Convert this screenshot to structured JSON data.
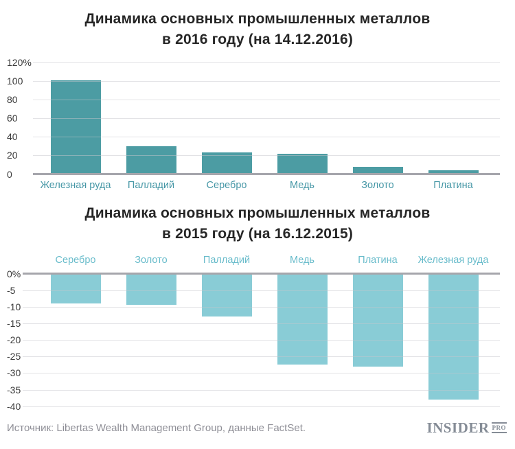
{
  "chart_data": [
    {
      "type": "bar",
      "title": "Динамика основных промышленных металлов",
      "subtitle": "в 2016 году (на 14.12.2016)",
      "unit": "%",
      "categories": [
        "Железная руда",
        "Палладий",
        "Серебро",
        "Медь",
        "Золото",
        "Платина"
      ],
      "values": [
        101,
        30,
        23,
        22,
        8,
        4
      ],
      "ylim": [
        0,
        120
      ],
      "grid": true,
      "legend": "none",
      "yticks": [
        {
          "label": "120%",
          "value": 120
        },
        {
          "label": "100",
          "value": 100
        },
        {
          "label": "80",
          "value": 80
        },
        {
          "label": "60",
          "value": 60
        },
        {
          "label": "40",
          "value": 40
        },
        {
          "label": "20",
          "value": 20
        },
        {
          "label": "0",
          "value": 0
        }
      ],
      "bar_color": "#4c9ca3",
      "label_color": "#4697a6"
    },
    {
      "type": "bar",
      "title": "Динамика основных промышленных металлов",
      "subtitle": "в 2015 году (на 16.12.2015)",
      "unit": "%",
      "categories": [
        "Серебро",
        "Золото",
        "Палладий",
        "Медь",
        "Платина",
        "Железная руда"
      ],
      "values": [
        -9,
        -9.5,
        -13,
        -27.5,
        -28,
        -38
      ],
      "ylim": [
        -40,
        0
      ],
      "grid": true,
      "legend": "none",
      "yticks": [
        {
          "label": "0%",
          "value": 0
        },
        {
          "label": "-5",
          "value": -5
        },
        {
          "label": "-10",
          "value": -10
        },
        {
          "label": "-15",
          "value": -15
        },
        {
          "label": "-20",
          "value": -20
        },
        {
          "label": "-25",
          "value": -25
        },
        {
          "label": "-30",
          "value": -30
        },
        {
          "label": "-35",
          "value": -35
        },
        {
          "label": "-40",
          "value": -40
        }
      ],
      "bar_color": "#89ccd6",
      "label_color": "#69bccb"
    }
  ],
  "footer": {
    "source": "Источник: Libertas Wealth Management Group, данные FactSet.",
    "logo_main": "INSIDER",
    "logo_sub": "PRO"
  }
}
